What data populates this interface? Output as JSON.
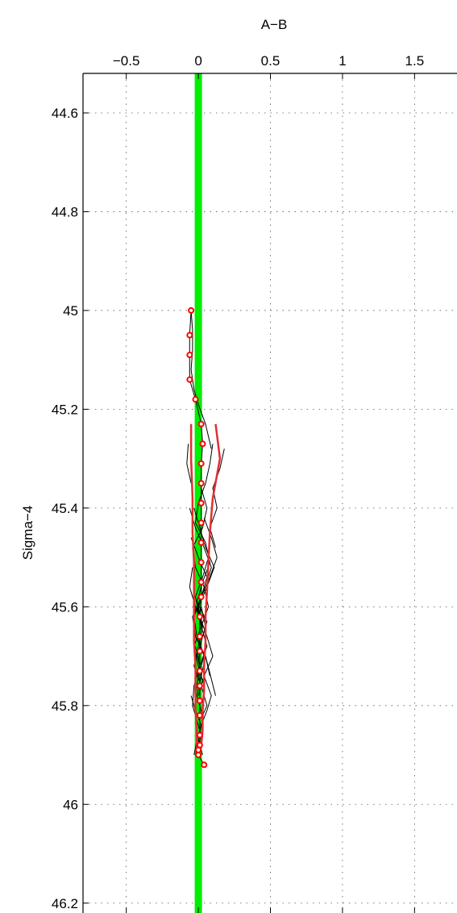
{
  "chart_data": {
    "type": "line",
    "xlabel": "A−B",
    "ylabel": "Sigma−4",
    "x_axis_position": "top",
    "y_axis_reversed": true,
    "xlim": [
      -0.8,
      1.8
    ],
    "ylim": [
      44.52,
      46.22
    ],
    "x_ticks": [
      -0.5,
      0,
      0.5,
      1,
      1.5
    ],
    "x_tick_labels": [
      "−0.5",
      "0",
      "0.5",
      "1",
      "1.5"
    ],
    "y_ticks": [
      44.6,
      44.8,
      45,
      45.2,
      45.4,
      45.6,
      45.8,
      46,
      46.2
    ],
    "y_tick_labels": [
      "44.6",
      "44.8",
      "45",
      "45.2",
      "45.4",
      "45.6",
      "45.8",
      "46",
      "46.2"
    ],
    "grid": true,
    "colors": {
      "reference_line": "#00ee00",
      "mean_profile": "#ff0000",
      "envelope": "#e03030",
      "individual_profiles": "#000000"
    },
    "reference_line": {
      "x": 0
    },
    "mean_profile": {
      "x": [
        -0.05,
        -0.06,
        -0.06,
        -0.06,
        -0.02,
        0.02,
        0.03,
        0.02,
        0.02,
        0.02,
        0.02,
        0.02,
        0.02,
        0.02,
        0.02,
        0.01,
        0.01,
        0.01,
        0.01,
        0.01,
        0.01,
        0.01,
        0.01,
        0.01,
        0.0,
        0.0,
        0.04
      ],
      "y": [
        45.0,
        45.05,
        45.09,
        45.14,
        45.18,
        45.23,
        45.27,
        45.31,
        45.35,
        45.39,
        45.43,
        45.47,
        45.51,
        45.55,
        45.58,
        45.62,
        45.66,
        45.69,
        45.73,
        45.76,
        45.79,
        45.82,
        45.86,
        45.88,
        45.89,
        45.9,
        45.92
      ]
    },
    "envelope": {
      "left": {
        "x": [
          -0.05,
          -0.05,
          -0.04,
          -0.04,
          -0.03,
          -0.03,
          -0.03,
          -0.03,
          -0.02,
          -0.02,
          -0.02,
          -0.01,
          -0.01,
          0.0
        ],
        "y": [
          45.23,
          45.3,
          45.38,
          45.45,
          45.51,
          45.57,
          45.62,
          45.67,
          45.72,
          45.77,
          45.81,
          45.85,
          45.88,
          45.89
        ]
      },
      "right": {
        "x": [
          0.12,
          0.15,
          0.1,
          0.08,
          0.07,
          0.06,
          0.05,
          0.05,
          0.04,
          0.04,
          0.03,
          0.03,
          0.02,
          0.01
        ],
        "y": [
          45.23,
          45.3,
          45.38,
          45.45,
          45.51,
          45.57,
          45.62,
          45.67,
          45.72,
          45.77,
          45.81,
          45.85,
          45.88,
          45.89
        ]
      }
    },
    "individual_profiles": [
      {
        "x": [
          -0.05,
          -0.04,
          -0.04,
          -0.05,
          -0.03,
          0.0,
          0.05,
          0.09
        ],
        "y": [
          45.0,
          45.04,
          45.08,
          45.12,
          45.16,
          45.19,
          45.23,
          45.28
        ]
      },
      {
        "x": [
          0.1,
          0.08,
          0.05,
          0.0,
          -0.02,
          0.05,
          0.08,
          0.03,
          -0.01,
          0.06,
          0.02,
          0.0
        ],
        "y": [
          45.27,
          45.31,
          45.35,
          45.39,
          45.43,
          45.47,
          45.51,
          45.55,
          45.59,
          45.63,
          45.67,
          45.71
        ]
      },
      {
        "x": [
          -0.07,
          -0.08,
          -0.05
        ],
        "y": [
          45.27,
          45.31,
          45.35
        ]
      },
      {
        "x": [
          0.18,
          0.15,
          0.1,
          0.13,
          0.08,
          0.12
        ],
        "y": [
          45.28,
          45.32,
          45.36,
          45.4,
          45.44,
          45.48
        ]
      },
      {
        "x": [
          0.02,
          0.06,
          0.03,
          -0.04,
          -0.02,
          0.04,
          0.07,
          0.02,
          -0.03,
          0.0,
          0.04
        ],
        "y": [
          45.36,
          45.4,
          45.44,
          45.48,
          45.52,
          45.56,
          45.6,
          45.64,
          45.68,
          45.72,
          45.76
        ]
      },
      {
        "x": [
          -0.06,
          -0.02,
          0.04,
          0.09,
          0.05,
          -0.01,
          0.02,
          0.06,
          0.01
        ],
        "y": [
          45.4,
          45.44,
          45.48,
          45.52,
          45.56,
          45.6,
          45.64,
          45.68,
          45.72
        ]
      },
      {
        "x": [
          -0.03,
          0.01,
          0.05,
          0.11,
          0.06,
          0.0,
          0.03
        ],
        "y": [
          45.4,
          45.44,
          45.48,
          45.52,
          45.56,
          45.6,
          45.64
        ]
      },
      {
        "x": [
          0.04,
          0.09,
          0.13,
          0.08,
          0.02,
          -0.04,
          -0.02,
          0.05,
          0.08
        ],
        "y": [
          45.42,
          45.46,
          45.5,
          45.54,
          45.58,
          45.62,
          45.66,
          45.7,
          45.74
        ]
      },
      {
        "x": [
          -0.05,
          0.0,
          0.06,
          0.02,
          -0.03,
          -0.01,
          0.04,
          0.0,
          -0.02
        ],
        "y": [
          45.46,
          45.5,
          45.54,
          45.58,
          45.62,
          45.66,
          45.7,
          45.74,
          45.78
        ]
      },
      {
        "x": [
          0.07,
          0.03,
          -0.02,
          0.01,
          0.06,
          0.1,
          0.04,
          0.0
        ],
        "y": [
          45.5,
          45.54,
          45.58,
          45.62,
          45.66,
          45.7,
          45.74,
          45.78
        ]
      },
      {
        "x": [
          -0.04,
          -0.06,
          -0.02,
          0.03,
          0.0,
          -0.03
        ],
        "y": [
          45.52,
          45.56,
          45.6,
          45.64,
          45.68,
          45.72
        ]
      },
      {
        "x": [
          0.02,
          0.05,
          0.01,
          -0.03,
          0.02,
          0.06,
          0.03,
          -0.01,
          0.02,
          0.05,
          0.12
        ],
        "y": [
          45.6,
          45.64,
          45.68,
          45.72,
          45.76,
          45.8,
          45.82,
          45.78,
          45.74,
          45.7,
          45.78
        ]
      },
      {
        "x": [
          -0.02,
          0.01,
          -0.03,
          -0.04,
          -0.01,
          0.02,
          0.0,
          -0.02
        ],
        "y": [
          45.68,
          45.72,
          45.76,
          45.8,
          45.83,
          45.86,
          45.88,
          45.9
        ]
      },
      {
        "x": [
          0.04,
          0.09,
          0.06,
          0.02,
          0.0,
          0.03
        ],
        "y": [
          45.74,
          45.78,
          45.81,
          45.84,
          45.87,
          45.9
        ]
      },
      {
        "x": [
          -0.05,
          -0.02,
          0.02,
          -0.01,
          -0.03
        ],
        "y": [
          45.78,
          45.81,
          45.84,
          45.87,
          45.9
        ]
      }
    ]
  }
}
